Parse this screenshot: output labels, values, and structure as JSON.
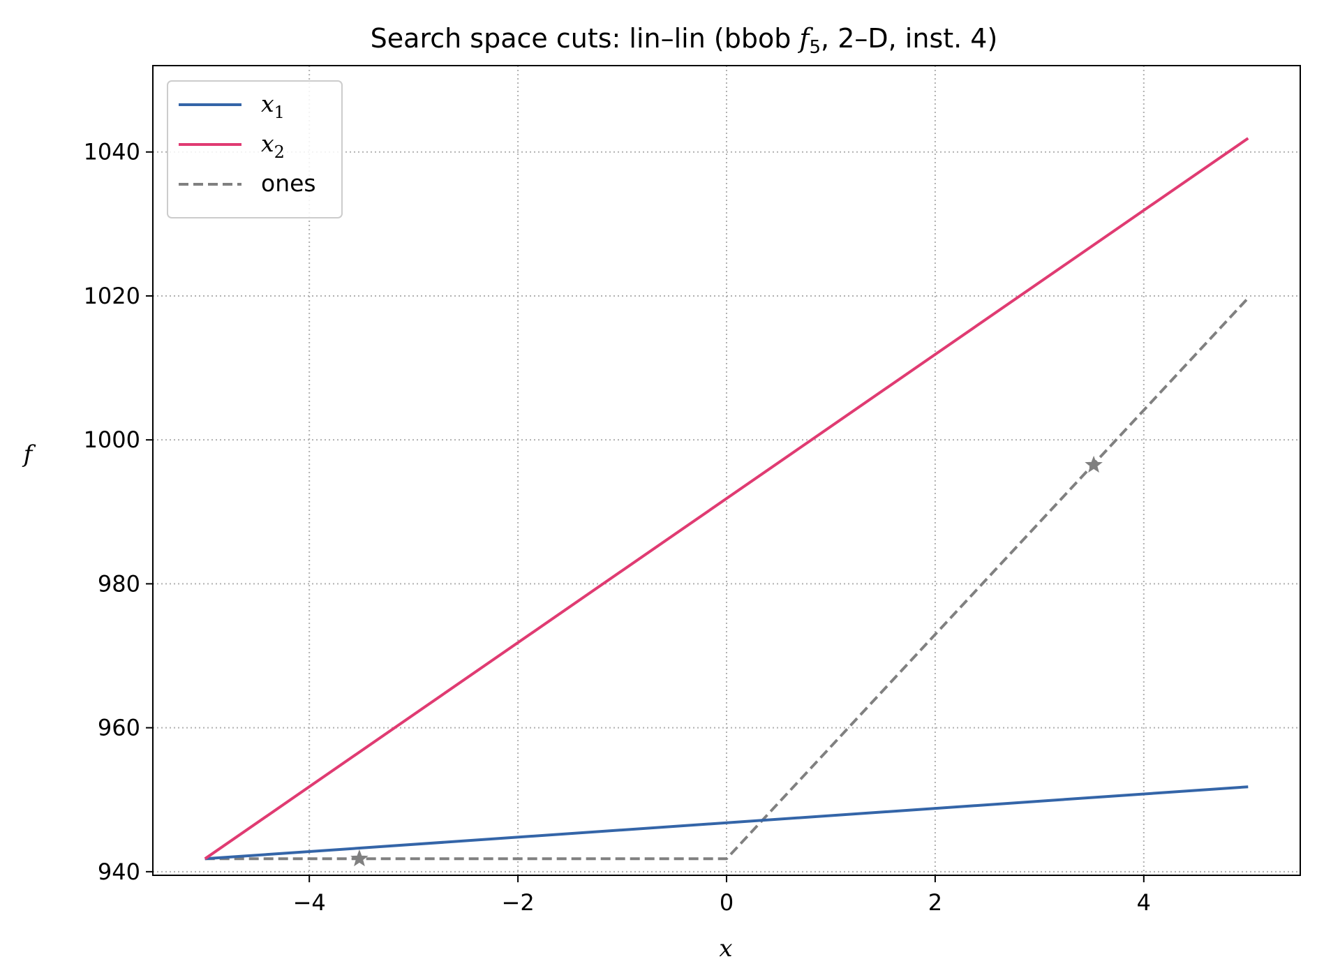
{
  "chart_data": {
    "type": "line",
    "title": "Search space cuts: lin–lin (bbob f5, 2–D, inst. 4)",
    "title_parts": {
      "before": "Search space cuts: lin–lin (bbob ",
      "func": "f",
      "func_sub": "5",
      "after": ", 2–D, inst. 4)"
    },
    "xlabel": "x",
    "ylabel": "f",
    "xlim": [
      -5.5,
      5.5
    ],
    "ylim": [
      939.5,
      1052
    ],
    "xticks": [
      -4,
      -2,
      0,
      2,
      4
    ],
    "xtick_labels": [
      "−4",
      "−2",
      "0",
      "2",
      "4"
    ],
    "yticks": [
      940,
      960,
      980,
      1000,
      1020,
      1040
    ],
    "ytick_labels": [
      "940",
      "960",
      "980",
      "1000",
      "1020",
      "1040"
    ],
    "grid": true,
    "legend_position": "top-left",
    "series": [
      {
        "name": "x1",
        "label_base": "x",
        "label_sub": "1",
        "color": "#3465a8",
        "style": "solid",
        "x": [
          -5,
          5
        ],
        "y": [
          941.8,
          951.8
        ]
      },
      {
        "name": "x2",
        "label_base": "x",
        "label_sub": "2",
        "color": "#e03b72",
        "style": "solid",
        "x": [
          -5,
          5
        ],
        "y": [
          941.8,
          1041.9
        ]
      },
      {
        "name": "ones",
        "label_text": "ones",
        "color": "#808080",
        "style": "dashed",
        "x": [
          -5,
          0,
          5
        ],
        "y": [
          941.8,
          941.8,
          1019.7
        ]
      }
    ],
    "markers": [
      {
        "series": "ones",
        "symbol": "star",
        "color": "#808080",
        "x": -3.52,
        "y": 941.8
      },
      {
        "series": "ones",
        "symbol": "star",
        "color": "#808080",
        "x": 3.52,
        "y": 996.5
      }
    ]
  }
}
